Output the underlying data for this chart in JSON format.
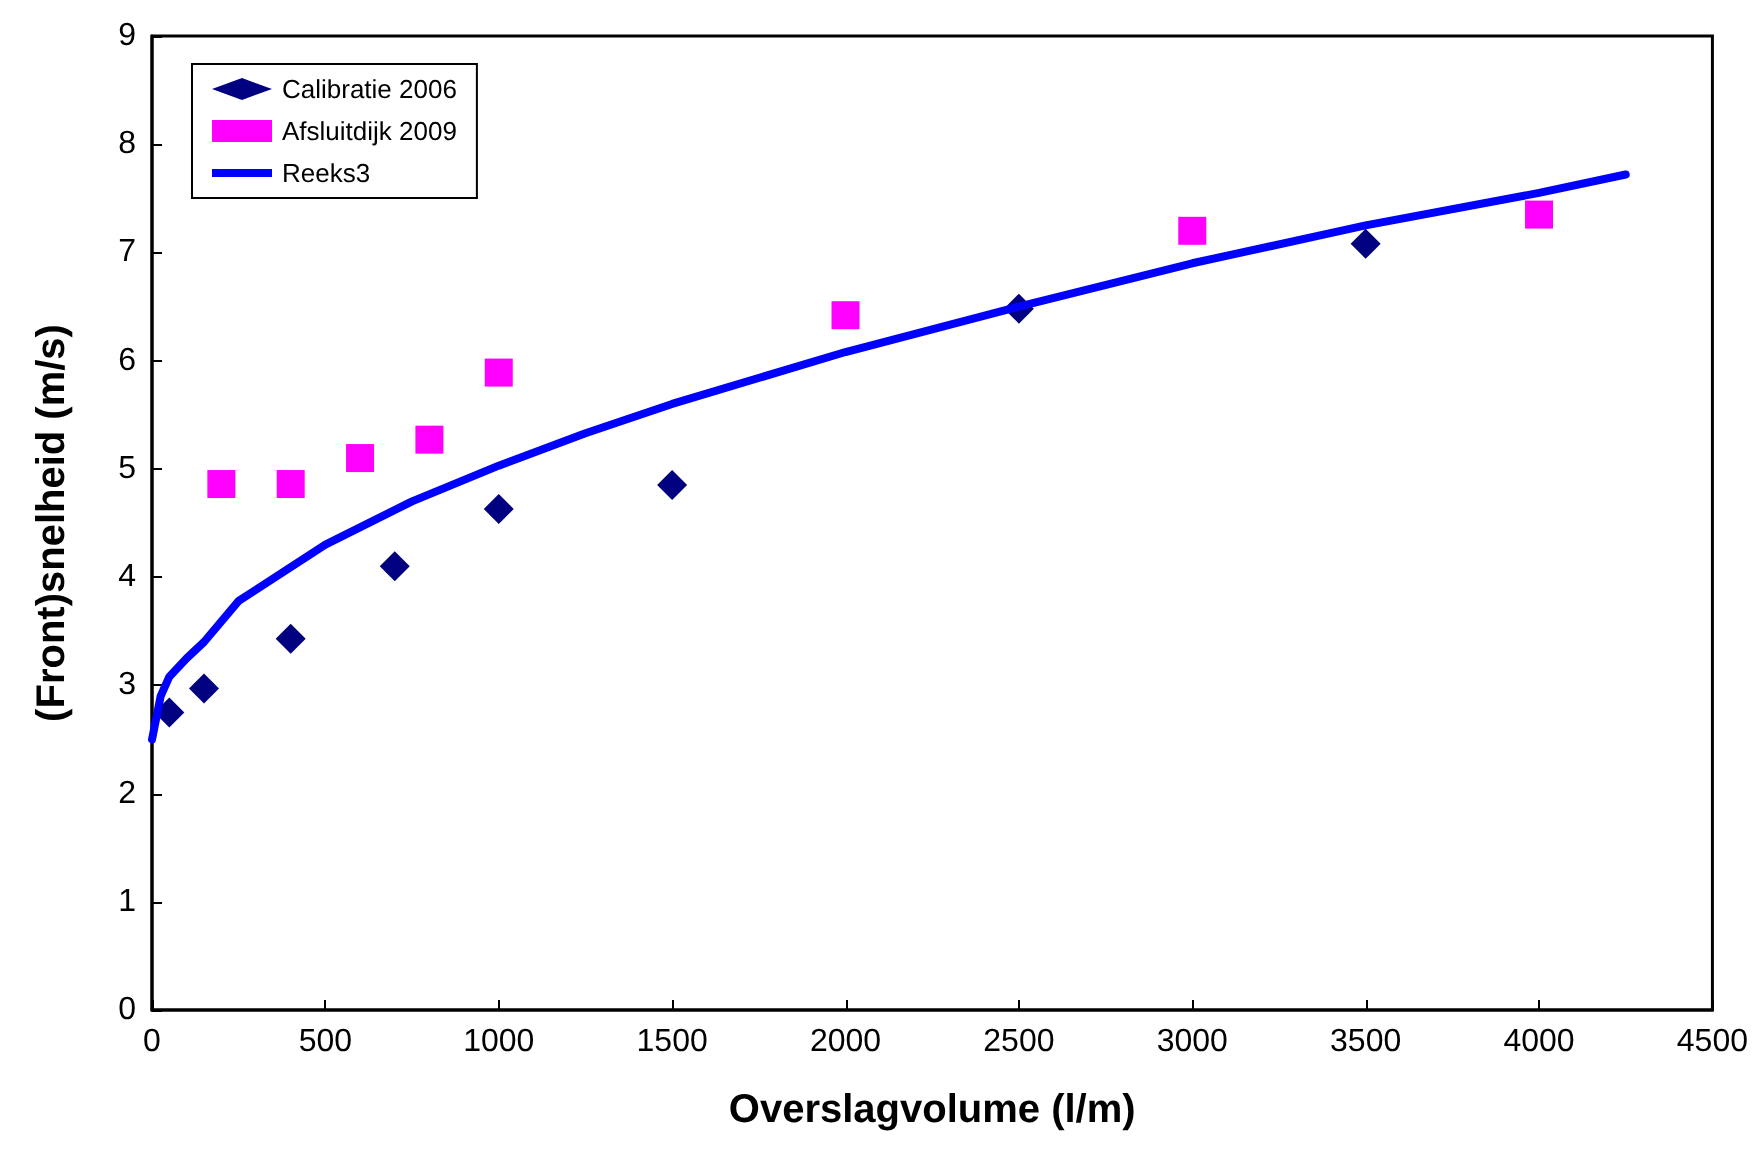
{
  "chart_data": {
    "type": "scatter",
    "xlabel": "Overslagvolume (l/m)",
    "ylabel": "(Front)snelheid (m/s)",
    "xlim": [
      0,
      4500
    ],
    "xticks": [
      0,
      500,
      1000,
      1500,
      2000,
      2500,
      3000,
      3500,
      4000,
      4500
    ],
    "ylim": [
      0,
      9
    ],
    "yticks": [
      0,
      1,
      2,
      3,
      4,
      5,
      6,
      7,
      8,
      9
    ],
    "grid": false,
    "legend": "top left",
    "series": [
      {
        "name": "Calibratie 2006",
        "marker": "diamond",
        "color": "#000080",
        "x": [
          50,
          150,
          400,
          700,
          1000,
          1500,
          2500,
          3500
        ],
        "values": [
          2.75,
          2.97,
          3.43,
          4.1,
          4.63,
          4.85,
          6.48,
          7.08
        ]
      },
      {
        "name": "Afsluitdijk 2009",
        "marker": "square",
        "color": "#ff00ff",
        "x": [
          200,
          400,
          600,
          800,
          1000,
          2000,
          3000,
          4000
        ],
        "values": [
          4.86,
          4.86,
          5.1,
          5.27,
          5.89,
          6.42,
          7.2,
          7.35
        ]
      },
      {
        "name": "Reeks3",
        "type": "line",
        "marker": "none",
        "line_style": "solid",
        "color": "#0000ff",
        "x": [
          0,
          25,
          50,
          100,
          150,
          250,
          500,
          750,
          1000,
          1250,
          1500,
          2000,
          2500,
          3000,
          3500,
          4000,
          4250
        ],
        "values": [
          2.5,
          2.9,
          3.08,
          3.25,
          3.4,
          3.78,
          4.3,
          4.7,
          5.03,
          5.33,
          5.6,
          6.08,
          6.5,
          6.9,
          7.25,
          7.55,
          7.72
        ]
      }
    ]
  }
}
